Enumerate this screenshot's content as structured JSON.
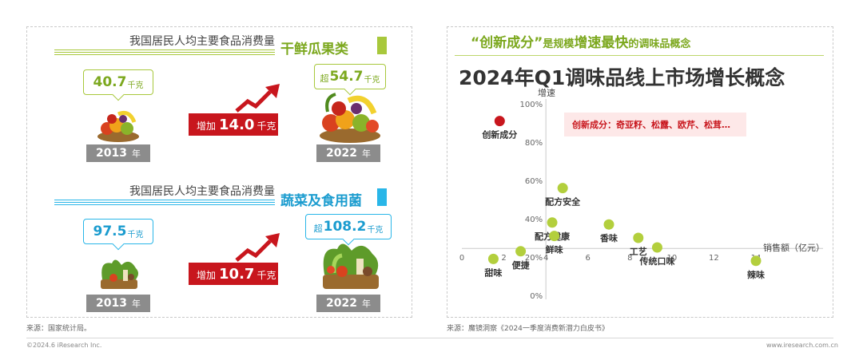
{
  "left": {
    "section1": {
      "subtitle": "我国居民人均主要食品消费量",
      "category": "干鲜瓜果类",
      "year_a": "2013",
      "year_b": "2022",
      "year_unit": "年",
      "value_a": "40.7",
      "value_b_prefix": "超",
      "value_b": "54.7",
      "unit": "千克",
      "increase_label": "增加",
      "increase_value": "14.0",
      "accent": "#a8c83c"
    },
    "section2": {
      "subtitle": "我国居民人均主要食品消费量",
      "category": "蔬菜及食用菌",
      "year_a": "2013",
      "year_b": "2022",
      "year_unit": "年",
      "value_a": "97.5",
      "value_b_prefix": "超",
      "value_b": "108.2",
      "unit": "千克",
      "increase_label": "增加",
      "increase_value": "10.7",
      "accent": "#29b6e8"
    },
    "source": "来源：国家统计局。"
  },
  "right": {
    "tagline": {
      "part1": "“创新成分”",
      "part2": "是规模",
      "part3": "增速最快",
      "part4": "的调味品概念"
    },
    "title": "2024年Q1调味品线上市场增长概念",
    "note": "创新成分：奇亚籽、松露、欧芹、松茸…",
    "source": "来源：魔镜洞察《2024一季度消费新潜力白皮书》"
  },
  "footer": {
    "left": "©2024.6 iResearch Inc.",
    "right": "www.iresearch.com.cn"
  },
  "colors": {
    "green": "#a8c83c",
    "green_dark": "#7ca81e",
    "blue": "#29b6e8",
    "red": "#c8161d",
    "point_green": "#b3cf3d",
    "point_red": "#c8161d"
  },
  "chart_data": {
    "type": "scatter",
    "title": "2024年Q1调味品线上市场增长概念",
    "xlabel": "销售额（亿元）",
    "ylabel": "增速",
    "xlim": [
      0,
      14
    ],
    "ylim": [
      0,
      100
    ],
    "x_ticks": [
      "0",
      "2",
      "4",
      "6",
      "8",
      "10",
      "12",
      "14"
    ],
    "y_ticks": [
      "100%",
      "80%",
      "60%",
      "40%",
      "20%",
      "0%"
    ],
    "grid": false,
    "points": [
      {
        "name": "创新成分",
        "x": 1.8,
        "y": 91,
        "highlight": true
      },
      {
        "name": "配方安全",
        "x": 4.8,
        "y": 56,
        "highlight": false
      },
      {
        "name": "配方健康",
        "x": 4.3,
        "y": 38,
        "highlight": false
      },
      {
        "name": "香味",
        "x": 7.0,
        "y": 37,
        "highlight": false
      },
      {
        "name": "鲜味",
        "x": 4.4,
        "y": 31,
        "highlight": false
      },
      {
        "name": "工艺",
        "x": 8.4,
        "y": 30,
        "highlight": false
      },
      {
        "name": "传统口味",
        "x": 9.3,
        "y": 25,
        "highlight": false
      },
      {
        "name": "便捷",
        "x": 2.8,
        "y": 23,
        "highlight": false
      },
      {
        "name": "甜味",
        "x": 1.5,
        "y": 19,
        "highlight": false
      },
      {
        "name": "辣味",
        "x": 14.0,
        "y": 18,
        "highlight": false
      }
    ]
  }
}
